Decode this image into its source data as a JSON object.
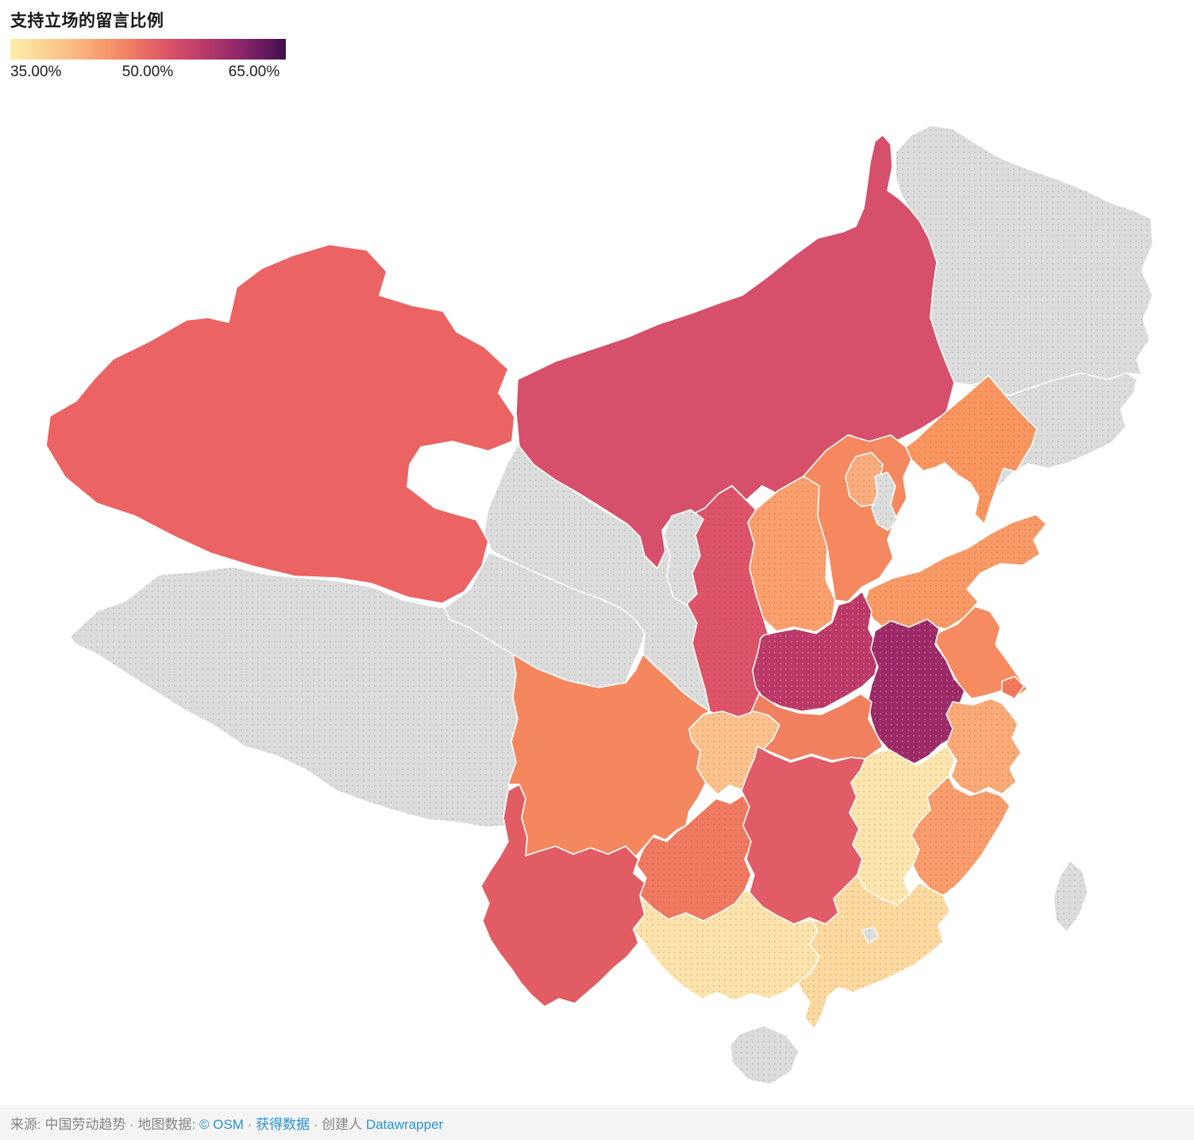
{
  "header": {
    "title": "支持立场的留言比例"
  },
  "footer": {
    "parts": [
      {
        "text": "来源: 中国劳动趋势 · 地图数据: ",
        "link": false
      },
      {
        "text": "© OSM",
        "link": true
      },
      {
        "text": " · ",
        "link": false
      },
      {
        "text": "获得数据",
        "link": true
      },
      {
        "text": " · 创建人 ",
        "link": false
      },
      {
        "text": "Datawrapper",
        "link": true
      }
    ]
  },
  "chart_data": {
    "type": "choropleth_map",
    "region": "China, province level",
    "title": "支持立场的留言比例",
    "legend": {
      "tick_labels": [
        "35.00%",
        "50.00%",
        "65.00%"
      ],
      "gradient_stops": [
        {
          "color": "#fdedaa",
          "pos": 0
        },
        {
          "color": "#fcd694",
          "pos": 11
        },
        {
          "color": "#fbbc84",
          "pos": 22
        },
        {
          "color": "#f89e6d",
          "pos": 33
        },
        {
          "color": "#f07f62",
          "pos": 43
        },
        {
          "color": "#e66465",
          "pos": 51
        },
        {
          "color": "#d44e68",
          "pos": 60
        },
        {
          "color": "#c03e69",
          "pos": 68
        },
        {
          "color": "#a93369",
          "pos": 75
        },
        {
          "color": "#8f276a",
          "pos": 83
        },
        {
          "color": "#6b1c5f",
          "pos": 91
        },
        {
          "color": "#3d1049",
          "pos": 100
        }
      ]
    },
    "no_data_color": "#dcdcdc",
    "provinces": [
      {
        "id": "heilongjiang",
        "name_zh": "黑龙江",
        "name_en": "Heilongjiang",
        "color": "#dcdcdc",
        "pattern": "gray",
        "estimated_value_pct": null
      },
      {
        "id": "jilin",
        "name_zh": "吉林",
        "name_en": "Jilin",
        "color": "#dcdcdc",
        "pattern": "gray",
        "estimated_value_pct": null
      },
      {
        "id": "tibet",
        "name_zh": "西藏",
        "name_en": "Tibet",
        "color": "#dcdcdc",
        "pattern": "gray",
        "estimated_value_pct": null
      },
      {
        "id": "qinghai",
        "name_zh": "青海",
        "name_en": "Qinghai",
        "color": "#dcdcdc",
        "pattern": "gray",
        "estimated_value_pct": null
      },
      {
        "id": "gansu",
        "name_zh": "甘肃",
        "name_en": "Gansu",
        "color": "#dcdcdc",
        "pattern": "gray",
        "estimated_value_pct": null
      },
      {
        "id": "xinjiang",
        "name_zh": "新疆",
        "name_en": "Xinjiang",
        "color": "#ec6363",
        "pattern": "none",
        "estimated_value_pct": 50
      },
      {
        "id": "inner_mongolia",
        "name_zh": "内蒙古",
        "name_en": "Inner Mongolia",
        "color": "#d6506b",
        "pattern": "none",
        "estimated_value_pct": 53
      },
      {
        "id": "liaoning",
        "name_zh": "辽宁",
        "name_en": "Liaoning",
        "color": "#f9965f",
        "pattern": "dark",
        "estimated_value_pct": 45
      },
      {
        "id": "hebei",
        "name_zh": "河北",
        "name_en": "Hebei",
        "color": "#f5885e",
        "pattern": "none",
        "estimated_value_pct": 46.5
      },
      {
        "id": "shanxi",
        "name_zh": "山西",
        "name_en": "Shanxi",
        "color": "#f9a06c",
        "pattern": "dark",
        "estimated_value_pct": 43.5
      },
      {
        "id": "shandong",
        "name_zh": "山东",
        "name_en": "Shandong",
        "color": "#f89a66",
        "pattern": "dark",
        "estimated_value_pct": 44.5
      },
      {
        "id": "shaanxi",
        "name_zh": "陕西",
        "name_en": "Shaanxi",
        "color": "#dd5468",
        "pattern": "dark",
        "estimated_value_pct": 52
      },
      {
        "id": "ningxia",
        "name_zh": "宁夏",
        "name_en": "Ningxia",
        "color": "#dcdcdc",
        "pattern": "gray",
        "estimated_value_pct": null
      },
      {
        "id": "henan",
        "name_zh": "河南",
        "name_en": "Henan",
        "color": "#bb3968",
        "pattern": "light",
        "estimated_value_pct": 56.5
      },
      {
        "id": "jiangsu",
        "name_zh": "江苏",
        "name_en": "Jiangsu",
        "color": "#f68a60",
        "pattern": "none",
        "estimated_value_pct": 46.5
      },
      {
        "id": "anhui",
        "name_zh": "安徽",
        "name_en": "Anhui",
        "color": "#9c2a68",
        "pattern": "light",
        "estimated_value_pct": 60
      },
      {
        "id": "hubei",
        "name_zh": "湖北",
        "name_en": "Hubei",
        "color": "#f0805f",
        "pattern": "none",
        "estimated_value_pct": 47.5
      },
      {
        "id": "chongqing",
        "name_zh": "重庆",
        "name_en": "Chongqing",
        "color": "#fbc28d",
        "pattern": "dark",
        "estimated_value_pct": 40.5
      },
      {
        "id": "sichuan",
        "name_zh": "四川",
        "name_en": "Sichuan",
        "color": "#f5875f",
        "pattern": "none",
        "estimated_value_pct": 46
      },
      {
        "id": "guizhou",
        "name_zh": "贵州",
        "name_en": "Guizhou",
        "color": "#ef7a5f",
        "pattern": "dark",
        "estimated_value_pct": 48
      },
      {
        "id": "hunan",
        "name_zh": "湖南",
        "name_en": "Hunan",
        "color": "#e15c66",
        "pattern": "none",
        "estimated_value_pct": 51
      },
      {
        "id": "jiangxi",
        "name_zh": "江西",
        "name_en": "Jiangxi",
        "color": "#fde5ae",
        "pattern": "dark",
        "estimated_value_pct": 36
      },
      {
        "id": "zhejiang",
        "name_zh": "浙江",
        "name_en": "Zhejiang",
        "color": "#f9aa77",
        "pattern": "dark",
        "estimated_value_pct": 42.5
      },
      {
        "id": "shanghai",
        "name_zh": "上海",
        "name_en": "Shanghai",
        "color": "#f3795c",
        "pattern": "dark",
        "estimated_value_pct": 47.5
      },
      {
        "id": "fujian",
        "name_zh": "福建",
        "name_en": "Fujian",
        "color": "#f89d6b",
        "pattern": "dark",
        "estimated_value_pct": 44
      },
      {
        "id": "yunnan",
        "name_zh": "云南",
        "name_en": "Yunnan",
        "color": "#e15c63",
        "pattern": "none",
        "estimated_value_pct": 51
      },
      {
        "id": "guangxi",
        "name_zh": "广西",
        "name_en": "Guangxi",
        "color": "#fce3ab",
        "pattern": "dark",
        "estimated_value_pct": 36.5
      },
      {
        "id": "guangdong",
        "name_zh": "广东",
        "name_en": "Guangdong",
        "color": "#fbd99f",
        "pattern": "dark",
        "estimated_value_pct": 38
      },
      {
        "id": "beijing",
        "name_zh": "北京",
        "name_en": "Beijing",
        "color": "#f9ad7c",
        "pattern": "dark",
        "estimated_value_pct": 42
      },
      {
        "id": "tianjin",
        "name_zh": "天津",
        "name_en": "Tianjin",
        "color": "#dcdcdc",
        "pattern": "gray",
        "estimated_value_pct": null
      },
      {
        "id": "hong_kong",
        "name_zh": "香港",
        "name_en": "Hong Kong",
        "color": "#dcdcdc",
        "pattern": "gray",
        "estimated_value_pct": null
      },
      {
        "id": "hainan",
        "name_zh": "海南",
        "name_en": "Hainan",
        "color": "#dcdcdc",
        "pattern": "gray",
        "estimated_value_pct": null
      },
      {
        "id": "taiwan",
        "name_zh": "台湾",
        "name_en": "Taiwan",
        "color": "#dcdcdc",
        "pattern": "gray",
        "estimated_value_pct": null
      }
    ]
  }
}
